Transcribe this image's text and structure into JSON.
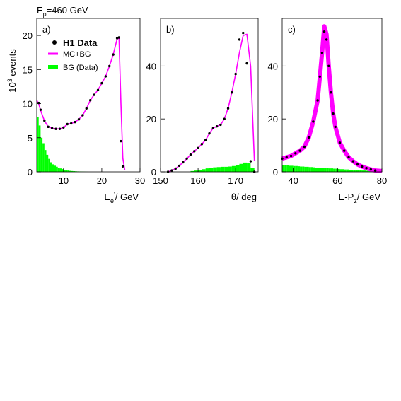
{
  "header": {
    "beam_label": "E",
    "beam_sub": "p",
    "beam_value": "=460 GeV"
  },
  "ylabel": {
    "prefix": "10",
    "exp": "3",
    "suffix": " events"
  },
  "legend": {
    "data": "H1 Data",
    "mc": "MC+BG",
    "bg": "BG (Data)"
  },
  "colors": {
    "mc": "#ff00ff",
    "bg": "#00ff00",
    "data": "#000000"
  },
  "chart_data": [
    {
      "type": "line",
      "panel_label": "a)",
      "xlabel": {
        "main": "E",
        "sub": "e",
        "sup": "'",
        "rest": "/ GeV"
      },
      "xlim": [
        3,
        30
      ],
      "ylim": [
        0,
        22.5
      ],
      "xticks": [
        10,
        20,
        30
      ],
      "yticks": [
        0,
        5,
        10,
        15,
        20
      ],
      "series": [
        {
          "name": "MC+BG",
          "x": [
            3,
            3.5,
            4,
            5,
            6,
            7,
            8,
            9,
            10,
            11,
            12,
            13,
            14,
            15,
            16,
            17,
            18,
            19,
            20,
            21,
            22,
            23,
            24,
            24.5,
            25,
            25.5,
            26
          ],
          "y": [
            10.5,
            10.0,
            9.0,
            7.5,
            6.6,
            6.4,
            6.3,
            6.3,
            6.5,
            7.0,
            7.1,
            7.3,
            7.7,
            8.3,
            9.3,
            10.5,
            11.3,
            12.0,
            13.0,
            14.0,
            15.5,
            17.2,
            19.5,
            19.6,
            10.0,
            2.0,
            0.3
          ]
        },
        {
          "name": "H1 Data",
          "x": [
            3.5,
            4,
            5,
            6,
            7,
            8,
            9,
            10,
            11,
            12,
            13,
            14,
            15,
            16,
            17,
            18,
            19,
            20,
            21,
            22,
            23,
            24,
            24.5,
            25,
            25.5
          ],
          "y": [
            10.1,
            9.1,
            7.5,
            6.6,
            6.4,
            6.3,
            6.3,
            6.5,
            7.0,
            7.1,
            7.3,
            7.7,
            8.3,
            9.3,
            10.5,
            11.3,
            12.0,
            13.0,
            14.0,
            15.5,
            17.2,
            19.6,
            19.7,
            4.5,
            0.8
          ]
        },
        {
          "name": "BG (Data)",
          "bin_width": 0.5,
          "x": [
            3,
            3.5,
            4,
            4.5,
            5,
            5.5,
            6,
            6.5,
            7,
            7.5,
            8,
            8.5,
            9,
            9.5,
            10,
            10.5,
            11,
            11.5,
            12,
            12.5,
            13,
            13.5,
            14,
            14.5,
            15,
            15.5,
            16
          ],
          "y": [
            8.0,
            6.8,
            5.0,
            4.2,
            3.2,
            2.5,
            1.9,
            1.4,
            1.1,
            0.9,
            0.75,
            0.6,
            0.5,
            0.4,
            0.3,
            0.25,
            0.2,
            0.15,
            0.12,
            0.1,
            0.08,
            0.06,
            0.05,
            0.04,
            0.03,
            0.02,
            0.01
          ]
        }
      ]
    },
    {
      "type": "line",
      "panel_label": "b)",
      "xlabel": {
        "main": "θ/ deg"
      },
      "xlim": [
        150,
        176
      ],
      "ylim": [
        0,
        58
      ],
      "xticks": [
        150,
        160,
        170
      ],
      "yticks": [
        0,
        20,
        40
      ],
      "series": [
        {
          "name": "MC+BG",
          "x": [
            152,
            153,
            154,
            155,
            156,
            157,
            158,
            159,
            160,
            161,
            162,
            163,
            164,
            165,
            166,
            167,
            168,
            169,
            170,
            171,
            172,
            173,
            174,
            175
          ],
          "y": [
            0,
            0.5,
            1.2,
            2.3,
            3.6,
            5.0,
            6.5,
            7.8,
            9.0,
            10.5,
            12.0,
            14.5,
            16.5,
            17.2,
            17.8,
            20.0,
            24.0,
            30.0,
            37.0,
            45.0,
            51.5,
            52.0,
            40.0,
            4.0
          ]
        },
        {
          "name": "H1 Data",
          "x": [
            152,
            153,
            154,
            155,
            156,
            157,
            158,
            159,
            160,
            161,
            162,
            163,
            164,
            165,
            166,
            167,
            168,
            169,
            170,
            171,
            172,
            173,
            174,
            175
          ],
          "y": [
            0,
            0.5,
            1.2,
            2.3,
            3.6,
            5.0,
            6.5,
            7.8,
            9.0,
            10.5,
            12.0,
            14.5,
            16.5,
            17.2,
            17.8,
            20.0,
            24.0,
            30.0,
            37.0,
            50.0,
            52.5,
            41.0,
            4.0,
            0
          ]
        },
        {
          "name": "BG (Data)",
          "bin_width": 1,
          "x": [
            158,
            159,
            160,
            161,
            162,
            163,
            164,
            165,
            166,
            167,
            168,
            169,
            170,
            171,
            172,
            173,
            174
          ],
          "y": [
            0.3,
            0.5,
            0.8,
            1.0,
            1.3,
            1.5,
            1.7,
            1.8,
            1.9,
            1.9,
            2.0,
            2.2,
            2.5,
            3.0,
            3.5,
            3.2,
            1.5
          ]
        }
      ]
    },
    {
      "type": "line",
      "panel_label": "c)",
      "xlabel": {
        "main": "E-P",
        "sub": "z",
        "rest": "/ GeV"
      },
      "xlim": [
        35,
        80
      ],
      "ylim": [
        0,
        58
      ],
      "xticks": [
        40,
        60,
        80
      ],
      "yticks": [
        0,
        20,
        40
      ],
      "series": [
        {
          "name": "MC+BG",
          "x": [
            35,
            37,
            39,
            41,
            43,
            45,
            47,
            49,
            51,
            52,
            53,
            54,
            55,
            56,
            57,
            58,
            59,
            61,
            63,
            65,
            67,
            69,
            71,
            73,
            75,
            77,
            80
          ],
          "y": [
            5.0,
            5.5,
            6.0,
            7.0,
            8.0,
            9.5,
            13.0,
            19.0,
            27.0,
            36.0,
            45.0,
            55.0,
            52.0,
            40.0,
            30.0,
            22.0,
            17.0,
            11.0,
            8.0,
            5.5,
            4.0,
            2.8,
            2.0,
            1.4,
            0.9,
            0.5,
            0.3
          ]
        },
        {
          "name": "H1 Data",
          "x": [
            35,
            37,
            39,
            41,
            43,
            45,
            47,
            49,
            51,
            52,
            53,
            54,
            55,
            56,
            57,
            58,
            59,
            61,
            63,
            65,
            67,
            69,
            71,
            73,
            75,
            77
          ],
          "y": [
            5.0,
            5.5,
            6.0,
            7.0,
            8.0,
            9.5,
            13.0,
            19.0,
            27.0,
            36.0,
            45.0,
            53.0,
            50.0,
            40.0,
            30.0,
            22.0,
            17.0,
            11.0,
            8.0,
            5.5,
            4.0,
            2.8,
            2.0,
            1.4,
            0.9,
            0.5
          ]
        },
        {
          "name": "BG (Data)",
          "bin_width": 1,
          "x": [
            35,
            36,
            37,
            38,
            39,
            40,
            41,
            42,
            43,
            44,
            45,
            46,
            47,
            48,
            49,
            50,
            51,
            52,
            53,
            54,
            55,
            56,
            57,
            58,
            59,
            60,
            61,
            62,
            63,
            64,
            65,
            66,
            67,
            68,
            69,
            70,
            71,
            72,
            73,
            74,
            75,
            76,
            77,
            78
          ],
          "y": [
            2.5,
            2.5,
            2.4,
            2.3,
            2.3,
            2.2,
            2.2,
            2.1,
            2.0,
            2.0,
            1.9,
            1.9,
            1.8,
            1.8,
            1.7,
            1.6,
            1.6,
            1.5,
            1.5,
            1.4,
            1.4,
            1.3,
            1.3,
            1.2,
            1.2,
            1.1,
            1.0,
            1.0,
            0.9,
            0.9,
            0.8,
            0.8,
            0.7,
            0.7,
            0.6,
            0.6,
            0.5,
            0.5,
            0.4,
            0.4,
            0.3,
            0.3,
            0.2,
            0.2
          ]
        }
      ]
    }
  ]
}
